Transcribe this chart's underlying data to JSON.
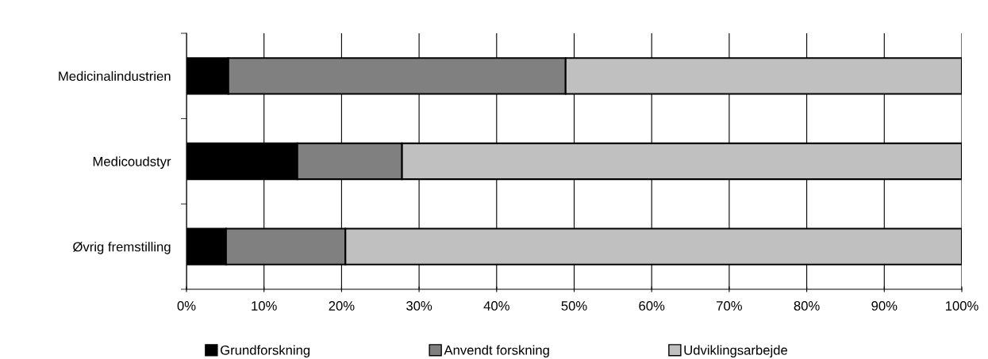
{
  "chart_data": {
    "type": "bar",
    "orientation": "horizontal",
    "stacked": true,
    "categories": [
      "Medicinalindustrien",
      "Medicoudstyr",
      "Øvrig fremstilling"
    ],
    "series": [
      {
        "name": "Grundforskning",
        "color": "#000000",
        "values": [
          5.4,
          14.3,
          5.1
        ]
      },
      {
        "name": "Anvendt forskning",
        "color": "#808080",
        "values": [
          43.5,
          13.5,
          15.4
        ]
      },
      {
        "name": "Udviklingsarbejde",
        "color": "#c0c0c0",
        "values": [
          51.1,
          72.2,
          79.5
        ]
      }
    ],
    "xlim": [
      0,
      100
    ],
    "xticks": [
      {
        "value": 0,
        "label": "0%"
      },
      {
        "value": 10,
        "label": "10%"
      },
      {
        "value": 20,
        "label": "20%"
      },
      {
        "value": 30,
        "label": "30%"
      },
      {
        "value": 40,
        "label": "40%"
      },
      {
        "value": 50,
        "label": "50%"
      },
      {
        "value": 60,
        "label": "60%"
      },
      {
        "value": 70,
        "label": "70%"
      },
      {
        "value": 80,
        "label": "80%"
      },
      {
        "value": 90,
        "label": "90%"
      },
      {
        "value": 100,
        "label": "100%"
      }
    ],
    "grid": "x",
    "legend": "bottom"
  }
}
